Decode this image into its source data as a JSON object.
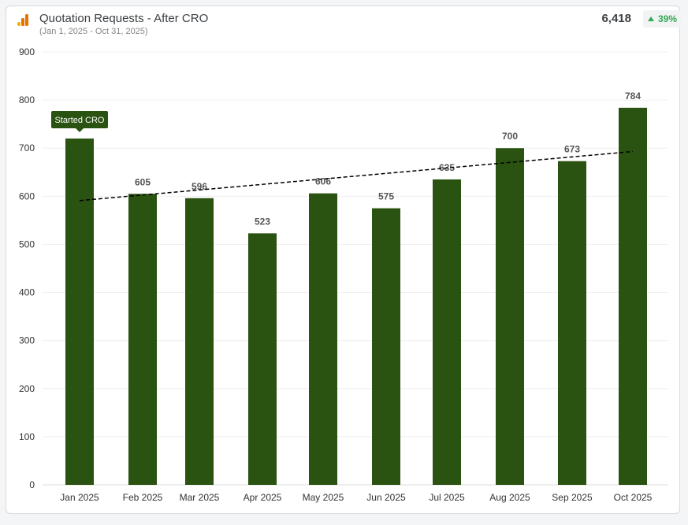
{
  "header": {
    "title": "Quotation Requests - After CRO",
    "date_range": "(Jan 1, 2025 - Oct 31, 2025)",
    "total": "6,418",
    "change": "39%"
  },
  "colors": {
    "bar": "#2a5210",
    "icon_dark": "#e37400",
    "icon_light": "#f9ab00",
    "trend": "#000000",
    "positive": "#34a853"
  },
  "chart_data": {
    "type": "bar",
    "title": "Quotation Requests - After CRO",
    "categories": [
      "Jan 2025",
      "Feb 2025",
      "Mar 2025",
      "Apr 2025",
      "May 2025",
      "Jun 2025",
      "Jul 2025",
      "Aug 2025",
      "Sep 2025",
      "Oct 2025"
    ],
    "values": [
      720,
      605,
      596,
      523,
      606,
      575,
      635,
      700,
      673,
      784
    ],
    "data_labels": [
      "",
      "605",
      "596",
      "523",
      "606",
      "575",
      "635",
      "700",
      "673",
      "784"
    ],
    "ylim": [
      0,
      900
    ],
    "yticks": [
      0,
      100,
      200,
      300,
      400,
      500,
      600,
      700,
      800,
      900
    ],
    "grid": true,
    "trendline": {
      "type": "linear",
      "start": 591,
      "end": 693,
      "style": "dashed"
    },
    "annotations": [
      {
        "category": "Jan 2025",
        "text": "Started CRO"
      }
    ]
  }
}
